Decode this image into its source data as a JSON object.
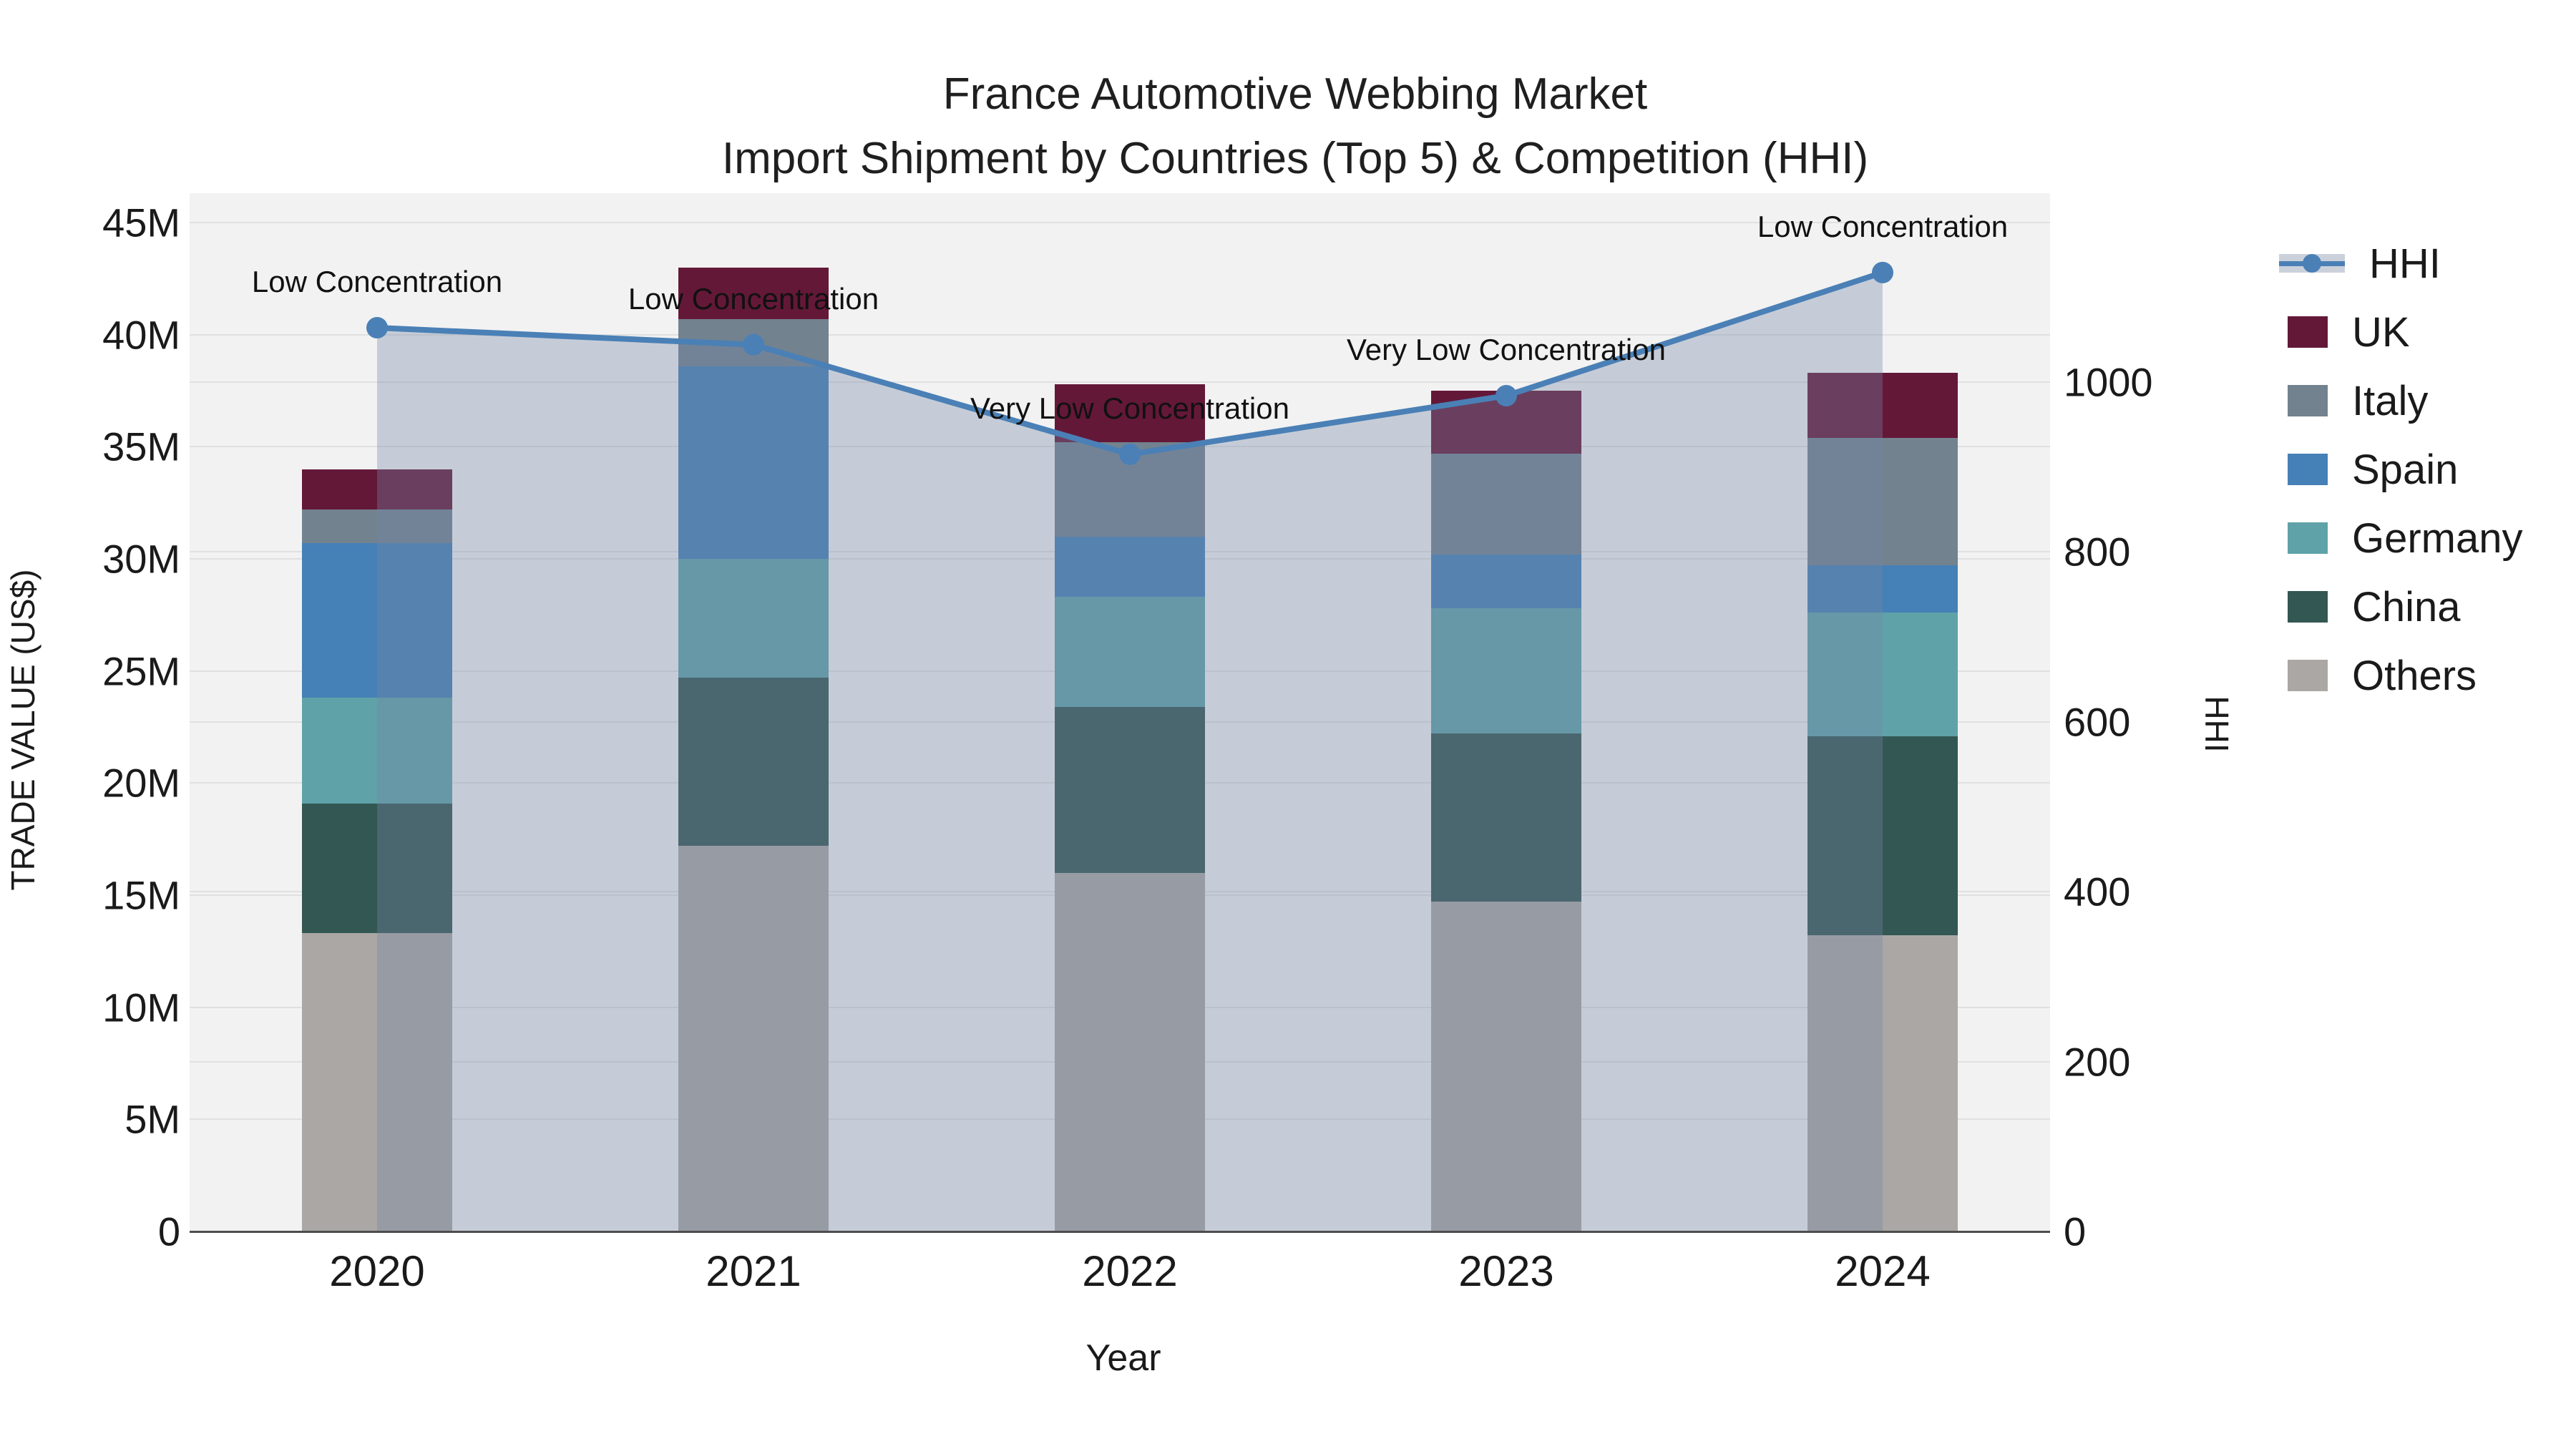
{
  "title": {
    "line1": "France Automotive Webbing Market",
    "line2": "Import Shipment by Countries (Top 5) & Competition (HHI)"
  },
  "colors": {
    "plot_bg": "#f2f2f2",
    "grid": "#e0e0e0",
    "axis_line": "#4d4d4d",
    "annotation": "#111111",
    "hhi_line": "#4a80b6",
    "area_fill": "rgba(117,136,166,0.35)"
  },
  "chart_data": {
    "type": "bar",
    "subtype": "stacked-bars-with-line",
    "categories": [
      "2020",
      "2021",
      "2022",
      "2023",
      "2024"
    ],
    "bar_series_bottom_to_top": [
      {
        "name": "Others",
        "color": "#aaa7a4",
        "values": [
          13.3,
          17.2,
          16.0,
          14.7,
          13.2
        ]
      },
      {
        "name": "China",
        "color": "#335753",
        "values": [
          5.8,
          7.5,
          7.4,
          7.5,
          8.9
        ]
      },
      {
        "name": "Germany",
        "color": "#5fa2a8",
        "values": [
          4.7,
          5.3,
          4.9,
          5.6,
          5.5
        ]
      },
      {
        "name": "Spain",
        "color": "#4580b6",
        "values": [
          6.9,
          8.6,
          2.7,
          2.4,
          2.1
        ]
      },
      {
        "name": "Italy",
        "color": "#72828f",
        "values": [
          1.5,
          2.1,
          4.2,
          4.5,
          5.7
        ]
      },
      {
        "name": "UK",
        "color": "#641838",
        "values": [
          1.8,
          2.3,
          2.6,
          2.8,
          2.9
        ]
      }
    ],
    "bar_totals": [
      34.0,
      43.0,
      37.8,
      37.5,
      38.3
    ],
    "bar_value_unit": "M US$",
    "line_series": {
      "name": "HHI",
      "color": "#4a80b6",
      "values": [
        1064,
        1044,
        915,
        984,
        1129
      ]
    },
    "annotations": [
      "Low Concentration",
      "Low Concentration",
      "Very Low Concentration",
      "Very Low Concentration",
      "Low Concentration"
    ],
    "xlabel": "Year",
    "ylabel": "TRADE VALUE (US$)",
    "y2label": "HHI",
    "ytick_labels": [
      "0",
      "5M",
      "10M",
      "15M",
      "20M",
      "25M",
      "30M",
      "35M",
      "40M",
      "45M"
    ],
    "ytick_values": [
      0,
      5,
      10,
      15,
      20,
      25,
      30,
      35,
      40,
      45
    ],
    "y2tick_labels": [
      "0",
      "200",
      "400",
      "600",
      "800",
      "1000"
    ],
    "y2tick_values": [
      0,
      200,
      400,
      600,
      800,
      1000
    ],
    "ylim": [
      0,
      46.3
    ],
    "y2lim": [
      0,
      1222
    ],
    "grid": "on",
    "legend_position": "right",
    "legend": [
      {
        "symbol": "line-marker-band",
        "label": "HHI",
        "color": "#4a80b6"
      },
      {
        "symbol": "patch",
        "label": "UK",
        "color": "#641838"
      },
      {
        "symbol": "patch",
        "label": "Italy",
        "color": "#72828f"
      },
      {
        "symbol": "patch",
        "label": "Spain",
        "color": "#4580b6"
      },
      {
        "symbol": "patch",
        "label": "Germany",
        "color": "#5fa2a8"
      },
      {
        "symbol": "patch",
        "label": "China",
        "color": "#335753"
      },
      {
        "symbol": "patch",
        "label": "Others",
        "color": "#aaa7a4"
      }
    ]
  }
}
